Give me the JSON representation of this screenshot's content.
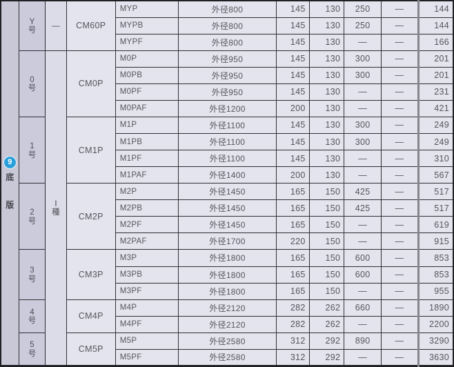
{
  "category": {
    "number": "9",
    "label": "底版"
  },
  "grades": [
    {
      "label": "—"
    },
    {
      "label": "Ⅰ種"
    }
  ],
  "colors": {
    "accent_blue": "#2aa0da",
    "border_dark": "#2e2e34",
    "separator_gray": "#85858c",
    "col_category_bg": "#c8c8d6",
    "col_size_bg": "#cbcbdc",
    "col_grade_bg": "#dcdce8",
    "cell_bg": "#e4e4ee"
  },
  "groups": [
    {
      "size": "Y号",
      "model": "CM60P",
      "rows": [
        [
          "MYP",
          "外径800",
          "145",
          "130",
          "250",
          "—",
          "144"
        ],
        [
          "MYPB",
          "外径800",
          "145",
          "130",
          "250",
          "—",
          "144"
        ],
        [
          "MYPF",
          "外径800",
          "145",
          "130",
          "—",
          "—",
          "166"
        ]
      ]
    },
    {
      "size": "0号",
      "model": "CM0P",
      "rows": [
        [
          "M0P",
          "外径950",
          "145",
          "130",
          "300",
          "—",
          "201"
        ],
        [
          "M0PB",
          "外径950",
          "145",
          "130",
          "300",
          "—",
          "201"
        ],
        [
          "M0PF",
          "外径950",
          "145",
          "130",
          "—",
          "—",
          "231"
        ],
        [
          "M0PAF",
          "外径1200",
          "200",
          "130",
          "—",
          "—",
          "421"
        ]
      ]
    },
    {
      "size": "1号",
      "model": "CM1P",
      "rows": [
        [
          "M1P",
          "外径1100",
          "145",
          "130",
          "300",
          "—",
          "249"
        ],
        [
          "M1PB",
          "外径1100",
          "145",
          "130",
          "300",
          "—",
          "249"
        ],
        [
          "M1PF",
          "外径1100",
          "145",
          "130",
          "—",
          "—",
          "310"
        ],
        [
          "M1PAF",
          "外径1400",
          "200",
          "130",
          "—",
          "—",
          "567"
        ]
      ]
    },
    {
      "size": "2号",
      "model": "CM2P",
      "rows": [
        [
          "M2P",
          "外径1450",
          "165",
          "150",
          "425",
          "—",
          "517"
        ],
        [
          "M2PB",
          "外径1450",
          "165",
          "150",
          "425",
          "—",
          "517"
        ],
        [
          "M2PF",
          "外径1450",
          "165",
          "150",
          "—",
          "—",
          "619"
        ],
        [
          "M2PAF",
          "外径1700",
          "220",
          "150",
          "—",
          "—",
          "915"
        ]
      ]
    },
    {
      "size": "3号",
      "model": "CM3P",
      "rows": [
        [
          "M3P",
          "外径1800",
          "165",
          "150",
          "600",
          "—",
          "853"
        ],
        [
          "M3PB",
          "外径1800",
          "165",
          "150",
          "600",
          "—",
          "853"
        ],
        [
          "M3PF",
          "外径1800",
          "165",
          "150",
          "—",
          "—",
          "955"
        ]
      ]
    },
    {
      "size": "4号",
      "model": "CM4P",
      "rows": [
        [
          "M4P",
          "外径2120",
          "282",
          "262",
          "660",
          "—",
          "1890"
        ],
        [
          "M4PF",
          "外径2120",
          "282",
          "262",
          "—",
          "—",
          "2200"
        ]
      ]
    },
    {
      "size": "5号",
      "model": "CM5P",
      "rows": [
        [
          "M5P",
          "外径2580",
          "312",
          "292",
          "890",
          "—",
          "3290"
        ],
        [
          "M5PF",
          "外径2580",
          "312",
          "292",
          "—",
          "—",
          "3630"
        ]
      ]
    }
  ]
}
